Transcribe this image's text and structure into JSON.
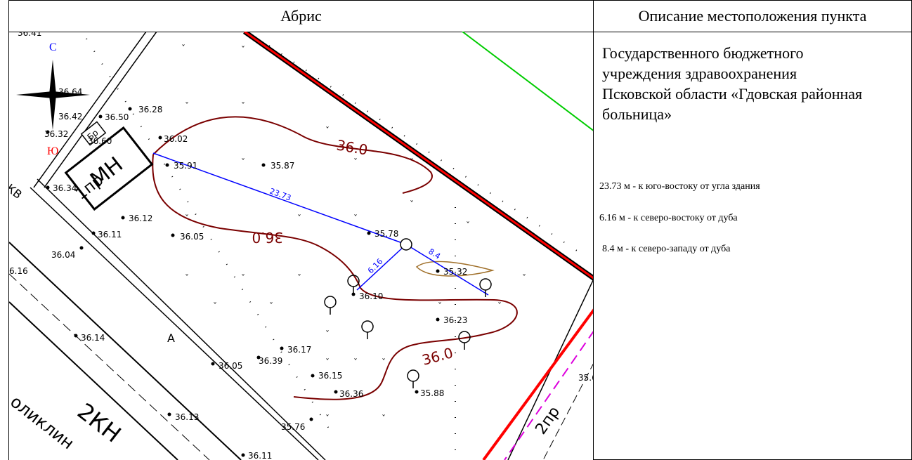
{
  "header": {
    "left_title": "Абрис",
    "right_title": "Описание местоположения пункта"
  },
  "description": {
    "title": "Государственного бюджетного учреждения здравоохранения Псковской области «Гдовская районная больница»",
    "line1": "23.73 м - к юго-востоку от угла здания",
    "line2": "6.16 м - к северо-востоку от дуба",
    "line3": "8.4 м - к северо-западу от дуба"
  },
  "compass": {
    "north": "С",
    "south": "Ю"
  },
  "map": {
    "building_label": "МН",
    "building_small": "Бр",
    "floors_label": "1пр",
    "building2_label": "2КН",
    "building2_note": "оликлин",
    "passage_label": "2пр",
    "zone_label": "А",
    "contour_label": "36.0",
    "measure_1": "23.73",
    "measure_2": "6.16",
    "measure_3": "8.4",
    "truncated_top_left": "36.41",
    "truncated_left": "6.16",
    "truncated_right": "35.6",
    "truncated_kv": "КВ",
    "spot_heights": [
      "36.64",
      "36.42",
      "36.50",
      "36.28",
      "36.32",
      "36.60",
      "36.02",
      "35.91",
      "35.87",
      "36.34",
      "36.12",
      "36.11",
      "36.05",
      "36.04",
      "35.78",
      "35.32",
      "36.10",
      "36.23",
      "36.14",
      "36.17",
      "36.05",
      "36.39",
      "36.15",
      "36.36",
      "35.88",
      "36.13",
      "35.76",
      "36.11"
    ]
  },
  "colors": {
    "measure": "#0000ff",
    "contour": "#7a0000",
    "road": "#ff0000",
    "boundary_green": "#00cc00",
    "magenta": "#dd00dd",
    "compass_north": "#0000ff",
    "compass_south": "#ff0000"
  }
}
